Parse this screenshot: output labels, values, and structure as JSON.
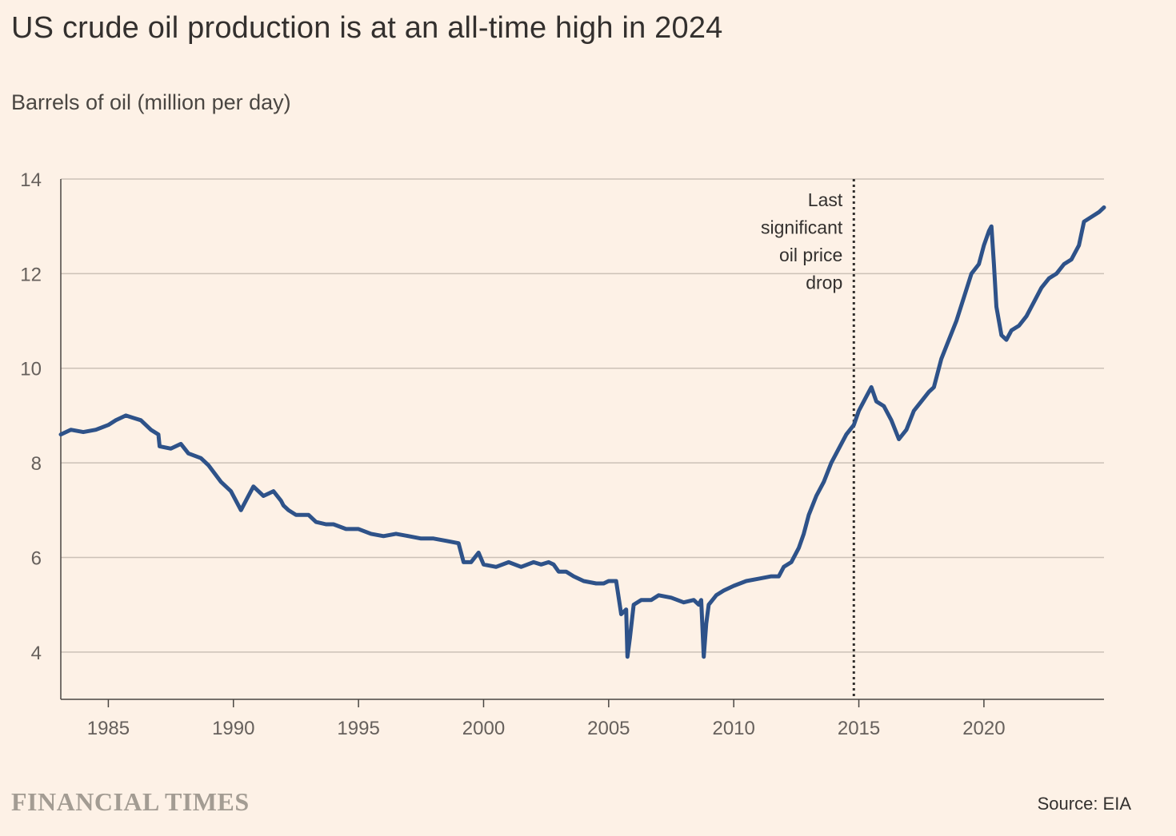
{
  "title": "US crude oil production is at an all-time high in 2024",
  "subtitle": "Barrels of oil (million per day)",
  "branding": "FINANCIAL TIMES",
  "source": "Source: EIA",
  "colors": {
    "background": "#fdf1e6",
    "line": "#2e5289",
    "grid": "#ccc1b7",
    "text": "#33302e"
  },
  "chart_data": {
    "type": "line",
    "title": "US crude oil production is at an all-time high in 2024",
    "ylabel": "Barrels of oil (million per day)",
    "xlabel": "",
    "xlim": [
      1983.1,
      2024.8
    ],
    "ylim": [
      3,
      14
    ],
    "yticks": [
      4,
      6,
      8,
      10,
      12,
      14
    ],
    "xticks": [
      1985,
      1990,
      1995,
      2000,
      2005,
      2010,
      2015,
      2020
    ],
    "grid": "horizontal",
    "annotation": {
      "x": 2014.8,
      "lines": [
        "Last",
        "significant",
        "oil price",
        "drop"
      ]
    },
    "series": [
      {
        "x": [
          1983.1,
          1983.5,
          1984,
          1984.5,
          1985,
          1985.3,
          1985.7,
          1986,
          1986.3,
          1986.7,
          1987,
          1987.05,
          1987.5,
          1987.9,
          1988.2,
          1988.7,
          1989,
          1989.5,
          1989.9,
          1990.3,
          1990.6,
          1990.8,
          1991,
          1991.2,
          1991.4,
          1991.6,
          1991.9,
          1992,
          1992.2,
          1992.5,
          1993,
          1993.3,
          1993.7,
          1994,
          1994.5,
          1995,
          1995.5,
          1996,
          1996.5,
          1997,
          1997.5,
          1998,
          1998.5,
          1999,
          1999.2,
          1999.5,
          1999.8,
          2000,
          2000.5,
          2001,
          2001.5,
          2002,
          2002.3,
          2002.6,
          2002.8,
          2003,
          2003.3,
          2003.6,
          2004,
          2004.5,
          2004.8,
          2005,
          2005.3,
          2005.5,
          2005.7,
          2005.75,
          2005.85,
          2006,
          2006.3,
          2006.7,
          2007,
          2007.5,
          2008,
          2008.4,
          2008.6,
          2008.7,
          2008.8,
          2008.9,
          2009,
          2009.3,
          2009.6,
          2010,
          2010.5,
          2011,
          2011.5,
          2011.8,
          2012,
          2012.3,
          2012.6,
          2012.8,
          2013,
          2013.3,
          2013.6,
          2013.9,
          2014.2,
          2014.5,
          2014.8,
          2015,
          2015.3,
          2015.5,
          2015.7,
          2016,
          2016.3,
          2016.6,
          2016.9,
          2017.2,
          2017.5,
          2017.8,
          2018,
          2018.3,
          2018.6,
          2018.9,
          2019.2,
          2019.5,
          2019.8,
          2020,
          2020.2,
          2020.3,
          2020.4,
          2020.5,
          2020.7,
          2020.9,
          2021.1,
          2021.4,
          2021.7,
          2022,
          2022.3,
          2022.6,
          2022.9,
          2023.2,
          2023.5,
          2023.8,
          2024,
          2024.3,
          2024.6,
          2024.8
        ],
        "values": [
          8.6,
          8.7,
          8.65,
          8.7,
          8.8,
          8.9,
          9.0,
          8.95,
          8.9,
          8.7,
          8.6,
          8.35,
          8.3,
          8.4,
          8.2,
          8.1,
          7.95,
          7.6,
          7.4,
          7.0,
          7.3,
          7.5,
          7.4,
          7.3,
          7.35,
          7.4,
          7.2,
          7.1,
          7.0,
          6.9,
          6.9,
          6.75,
          6.7,
          6.7,
          6.6,
          6.6,
          6.5,
          6.45,
          6.5,
          6.45,
          6.4,
          6.4,
          6.35,
          6.3,
          5.9,
          5.9,
          6.1,
          5.85,
          5.8,
          5.9,
          5.8,
          5.9,
          5.85,
          5.9,
          5.85,
          5.7,
          5.7,
          5.6,
          5.5,
          5.45,
          5.45,
          5.5,
          5.5,
          4.8,
          4.9,
          3.9,
          4.3,
          5.0,
          5.1,
          5.1,
          5.2,
          5.15,
          5.05,
          5.1,
          5.0,
          5.1,
          3.9,
          4.6,
          5.0,
          5.2,
          5.3,
          5.4,
          5.5,
          5.55,
          5.6,
          5.6,
          5.8,
          5.9,
          6.2,
          6.5,
          6.9,
          7.3,
          7.6,
          8.0,
          8.3,
          8.6,
          8.8,
          9.1,
          9.4,
          9.6,
          9.3,
          9.2,
          8.9,
          8.5,
          8.7,
          9.1,
          9.3,
          9.5,
          9.6,
          10.2,
          10.6,
          11.0,
          11.5,
          12.0,
          12.2,
          12.6,
          12.9,
          13.0,
          12.2,
          11.3,
          10.7,
          10.6,
          10.8,
          10.9,
          11.1,
          11.4,
          11.7,
          11.9,
          12.0,
          12.2,
          12.3,
          12.6,
          13.1,
          13.2,
          13.3,
          13.4
        ]
      }
    ]
  }
}
